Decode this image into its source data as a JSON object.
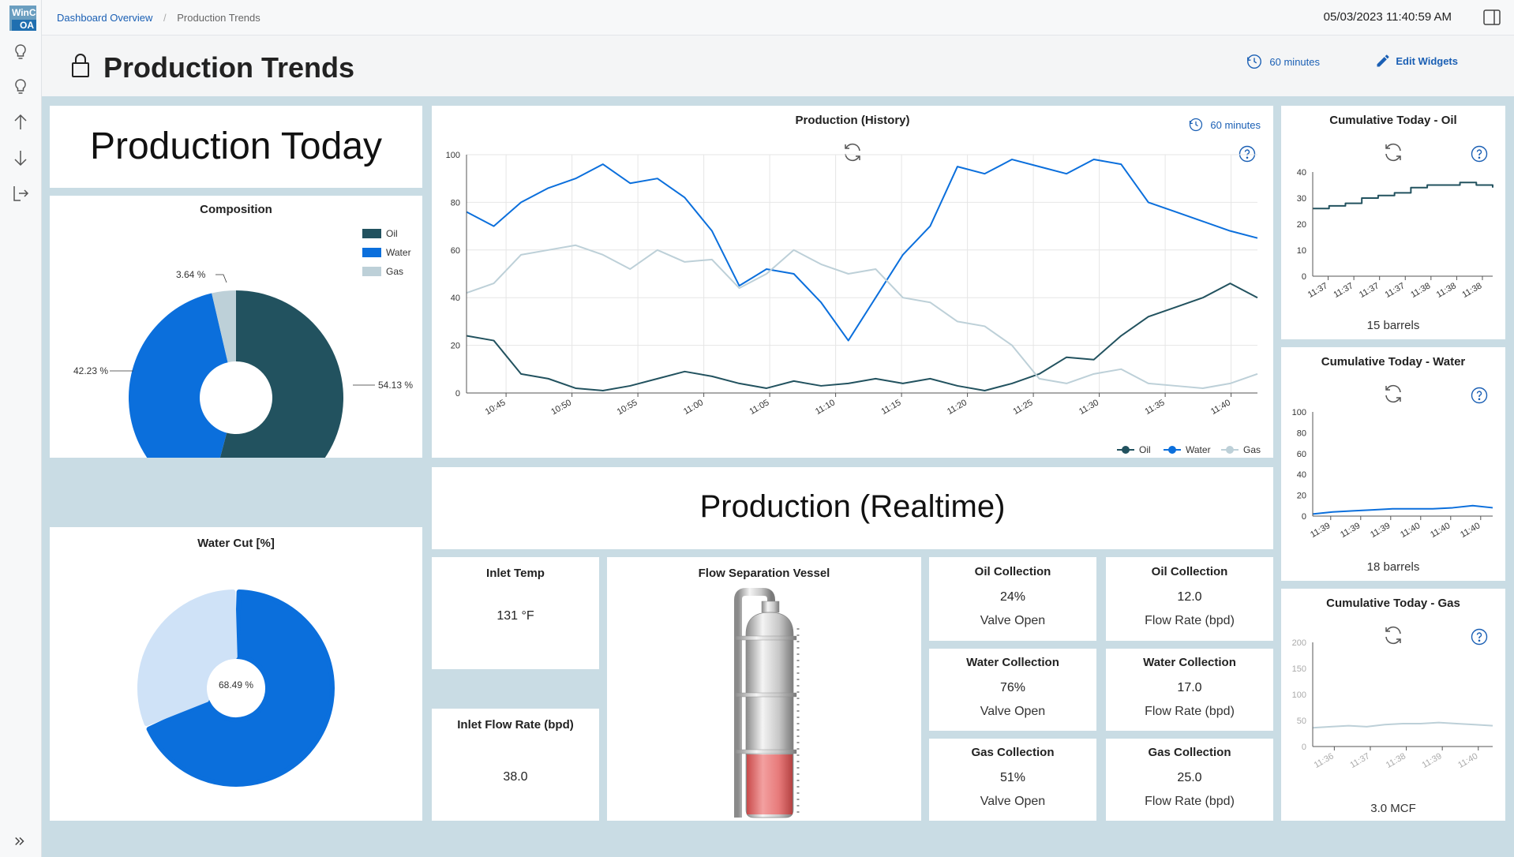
{
  "app": {
    "logo_line1": "WinC",
    "logo_line2": "OA"
  },
  "breadcrumb": {
    "parent": "Dashboard Overview",
    "current": "Production Trends"
  },
  "header": {
    "datetime": "05/03/2023 11:40:59 AM",
    "title": "Production Trends",
    "time_range": "60 minutes",
    "edit_label": "Edit Widgets"
  },
  "widgets": {
    "production_today": "Production Today",
    "composition": {
      "title": "Composition",
      "legend": [
        "Oil",
        "Water",
        "Gas"
      ],
      "labels": {
        "oil": "54.13 %",
        "water": "42.23 %",
        "gas": "3.64 %"
      }
    },
    "water_cut": {
      "title": "Water Cut [%]",
      "label": "68.49 %"
    },
    "history": {
      "title": "Production (History)",
      "range": "60 minutes",
      "legend": [
        "Oil",
        "Water",
        "Gas"
      ]
    },
    "realtime": "Production (Realtime)",
    "inlet_temp": {
      "title": "Inlet Temp",
      "value": "131 °F"
    },
    "inlet_flow": {
      "title": "Inlet Flow Rate (bpd)",
      "value": "38.0"
    },
    "vessel": {
      "title": "Flow Separation Vessel",
      "level": 0.33
    },
    "oil_valve": {
      "title": "Oil Collection",
      "value": "24%",
      "sub": "Valve Open"
    },
    "oil_flow": {
      "title": "Oil Collection",
      "value": "12.0",
      "sub": "Flow Rate (bpd)"
    },
    "water_valve": {
      "title": "Water Collection",
      "value": "76%",
      "sub": "Valve Open"
    },
    "water_flow": {
      "title": "Water Collection",
      "value": "17.0",
      "sub": "Flow Rate (bpd)"
    },
    "gas_valve": {
      "title": "Gas Collection",
      "value": "51%",
      "sub": "Valve Open"
    },
    "gas_flow": {
      "title": "Gas Collection",
      "value": "25.0",
      "sub": "Flow Rate (bpd)"
    },
    "cum_oil": {
      "title": "Cumulative Today - Oil",
      "total": "15 barrels"
    },
    "cum_water": {
      "title": "Cumulative Today - Water",
      "total": "18 barrels"
    },
    "cum_gas": {
      "title": "Cumulative Today - Gas",
      "total": "3.0 MCF"
    }
  },
  "colors": {
    "oil": "#22525f",
    "water": "#0b6fdc",
    "gas": "#bdd0d8",
    "water_cut_light": "#cfe2f7"
  },
  "chart_data": [
    {
      "type": "pie",
      "categories": [
        "Oil",
        "Water",
        "Gas"
      ],
      "values": [
        54.13,
        42.23,
        3.64
      ]
    },
    {
      "type": "pie",
      "categories": [
        "",
        ""
      ],
      "values": [
        68.49,
        31.51
      ]
    },
    {
      "type": "line",
      "title": "Production (History)",
      "x": [
        "10:42",
        "10:44",
        "10:46",
        "10:48",
        "10:50",
        "10:52",
        "10:54",
        "10:56",
        "10:58",
        "11:00",
        "11:02",
        "11:04",
        "11:06",
        "11:08",
        "11:10",
        "11:12",
        "11:14",
        "11:16",
        "11:18",
        "11:20",
        "11:22",
        "11:24",
        "11:26",
        "11:28",
        "11:30",
        "11:32",
        "11:34",
        "11:36",
        "11:38",
        "11:40"
      ],
      "x_ticks": [
        "10:45",
        "10:50",
        "10:55",
        "11:00",
        "11:05",
        "11:10",
        "11:15",
        "11:20",
        "11:25",
        "11:30",
        "11:35",
        "11:40"
      ],
      "ylim": [
        0,
        100
      ],
      "y_ticks": [
        0,
        20,
        40,
        60,
        80,
        100
      ],
      "series": [
        {
          "name": "Oil",
          "values": [
            24,
            22,
            8,
            6,
            2,
            1,
            3,
            6,
            9,
            7,
            4,
            2,
            5,
            3,
            4,
            6,
            4,
            6,
            3,
            1,
            4,
            8,
            15,
            14,
            24,
            32,
            36,
            40,
            46,
            40
          ]
        },
        {
          "name": "Water",
          "values": [
            76,
            70,
            80,
            86,
            90,
            96,
            88,
            90,
            82,
            68,
            45,
            52,
            50,
            38,
            22,
            40,
            58,
            70,
            95,
            92,
            98,
            95,
            92,
            98,
            96,
            80,
            76,
            72,
            68,
            65
          ]
        },
        {
          "name": "Gas",
          "values": [
            42,
            46,
            58,
            60,
            62,
            58,
            52,
            60,
            55,
            56,
            44,
            50,
            60,
            54,
            50,
            52,
            40,
            38,
            30,
            28,
            20,
            6,
            4,
            8,
            10,
            4,
            3,
            2,
            4,
            8
          ]
        }
      ]
    },
    {
      "type": "line",
      "title": "Cumulative Today - Oil",
      "x": [
        "11:36:30",
        "11:37:00",
        "11:37:10",
        "11:37:20",
        "11:37:30",
        "11:37:40",
        "11:37:50",
        "11:38:00",
        "11:38:10",
        "11:38:20",
        "11:38:30",
        "11:38:40"
      ],
      "x_ticks": [
        "11:37",
        "11:37",
        "11:37",
        "11:37",
        "11:38",
        "11:38",
        "11:38"
      ],
      "ylim": [
        0,
        40
      ],
      "y_ticks": [
        0,
        10,
        20,
        30,
        40
      ],
      "series": [
        {
          "name": "",
          "values": [
            26,
            27,
            28,
            30,
            31,
            32,
            34,
            35,
            35,
            36,
            35,
            34
          ]
        }
      ]
    },
    {
      "type": "line",
      "title": "Cumulative Today - Water",
      "x": [
        "11:38:45",
        "11:39:00",
        "11:39:15",
        "11:39:30",
        "11:39:45",
        "11:40:00",
        "11:40:15",
        "11:40:30",
        "11:40:45",
        "11:41:00"
      ],
      "x_ticks": [
        "11:39",
        "11:39",
        "11:39",
        "11:40",
        "11:40",
        "11:40"
      ],
      "ylim": [
        0,
        100
      ],
      "y_ticks": [
        0,
        20,
        40,
        60,
        80,
        100
      ],
      "series": [
        {
          "name": "",
          "values": [
            2,
            4,
            5,
            6,
            7,
            7,
            7,
            8,
            10,
            8
          ]
        }
      ]
    },
    {
      "type": "line",
      "title": "Cumulative Today - Gas",
      "x": [
        "11:36",
        "11:36:30",
        "11:37",
        "11:37:30",
        "11:38",
        "11:38:30",
        "11:39",
        "11:39:30",
        "11:40",
        "11:40:30",
        "11:41"
      ],
      "x_ticks": [
        "11:36",
        "11:37",
        "11:38",
        "11:39",
        "11:40"
      ],
      "ylim": [
        0,
        200
      ],
      "y_ticks": [
        0,
        50,
        100,
        150,
        200
      ],
      "series": [
        {
          "name": "",
          "values": [
            36,
            38,
            40,
            38,
            42,
            44,
            44,
            46,
            44,
            42,
            40
          ]
        }
      ]
    }
  ]
}
